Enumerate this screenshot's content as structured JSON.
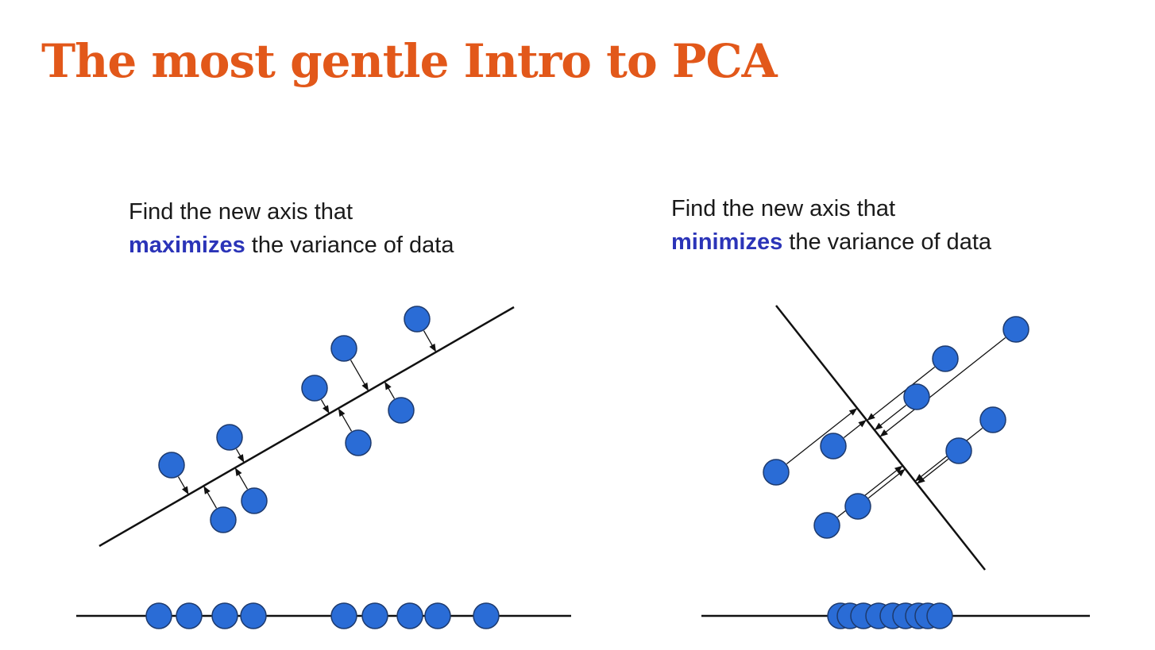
{
  "title": "The most gentle Intro to PCA",
  "colors": {
    "title": "#e2581a",
    "keyword": "#2b34b8",
    "point_fill": "#2a6cd6",
    "point_stroke": "#1d3a6e",
    "line": "#111111"
  },
  "panels": [
    {
      "caption_line1": "Find the new axis that",
      "caption_keyword": "maximizes",
      "caption_rest": " the variance of data"
    },
    {
      "caption_line1": "Find the new axis that",
      "caption_keyword": "minimizes",
      "caption_rest": " the variance of data"
    }
  ]
}
